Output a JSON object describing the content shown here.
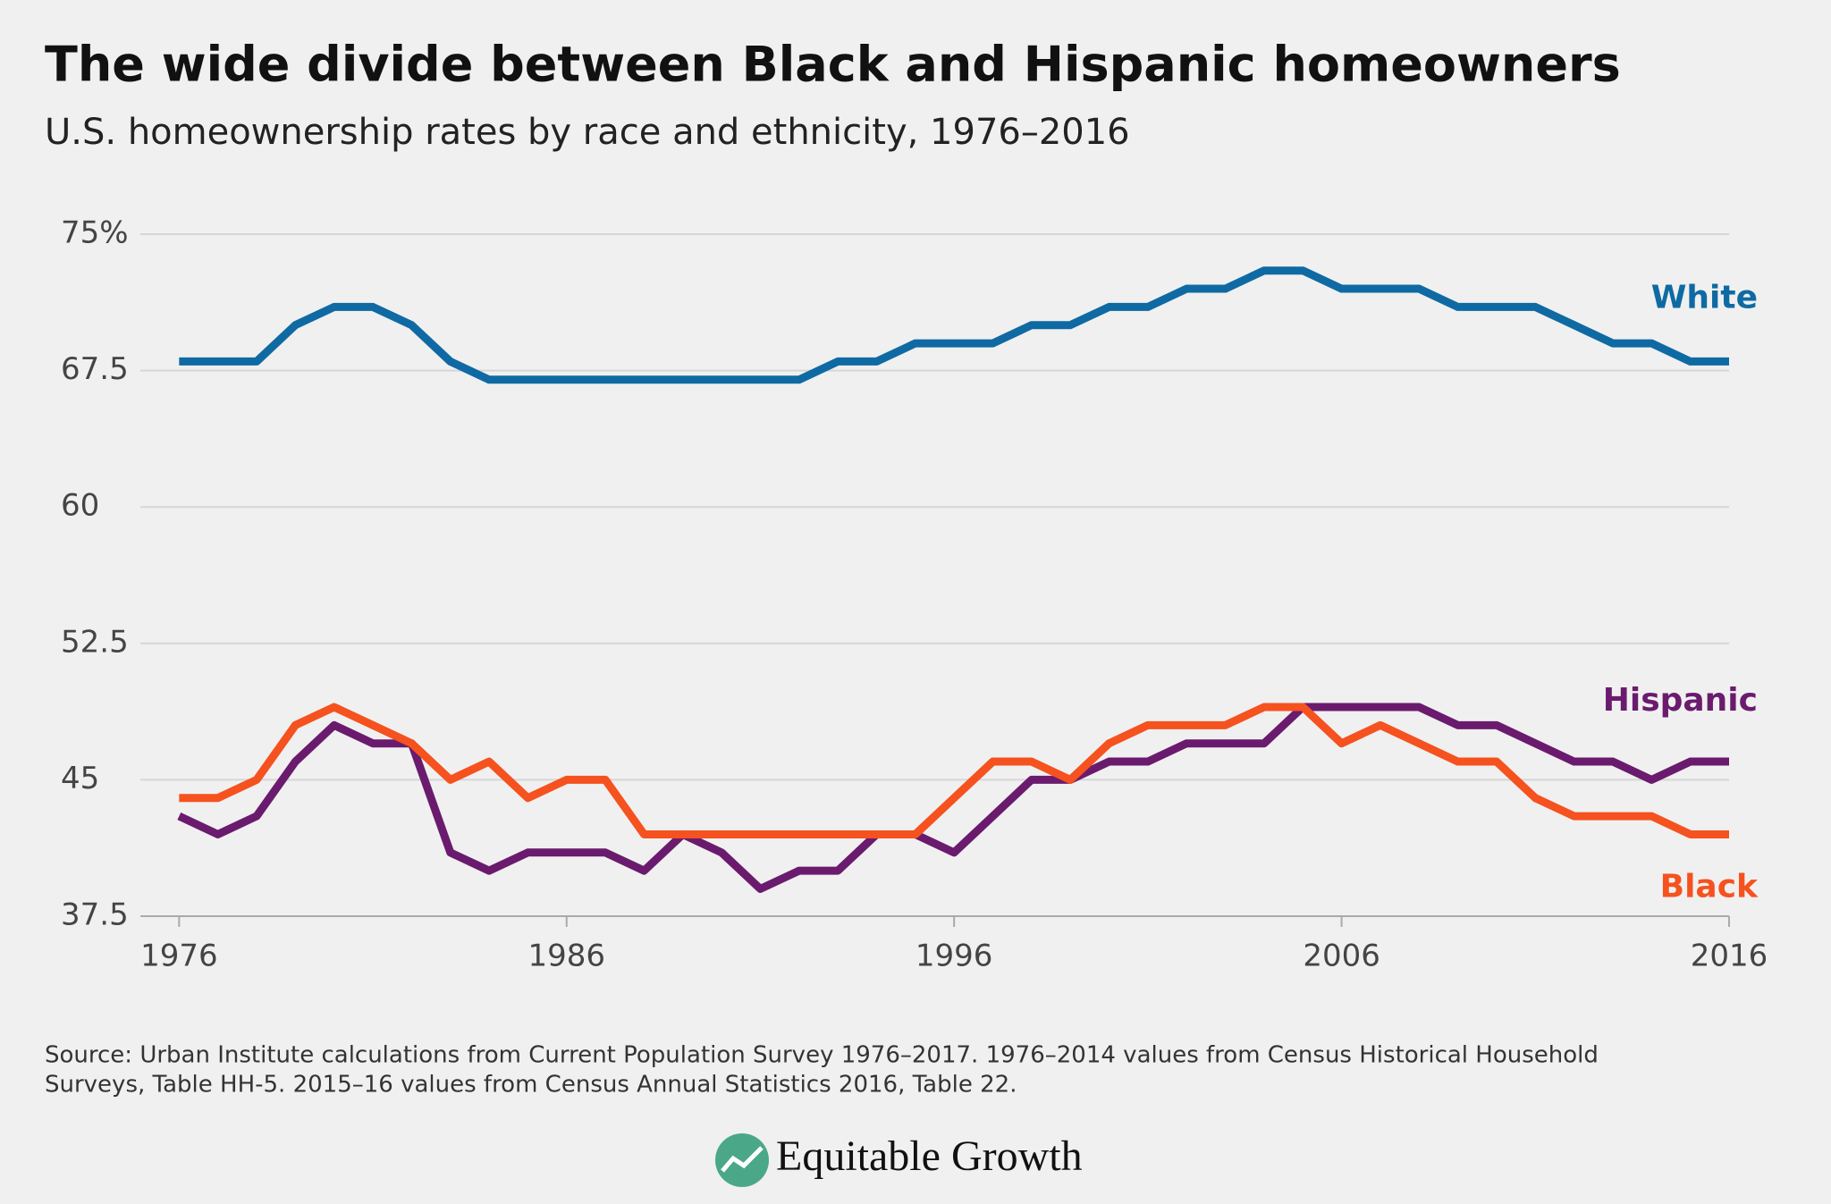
{
  "chart_data": {
    "type": "line",
    "title": "The wide divide between Black and Hispanic homeowners",
    "subtitle": "U.S. homeownership rates by race and ethnicity, 1976–2016",
    "x": [
      1976,
      1977,
      1978,
      1979,
      1980,
      1981,
      1982,
      1983,
      1984,
      1985,
      1986,
      1987,
      1988,
      1989,
      1990,
      1991,
      1992,
      1993,
      1994,
      1995,
      1996,
      1997,
      1998,
      1999,
      2000,
      2001,
      2002,
      2003,
      2004,
      2005,
      2006,
      2007,
      2008,
      2009,
      2010,
      2011,
      2012,
      2013,
      2014,
      2015,
      2016
    ],
    "series": [
      {
        "name": "White",
        "color": "#0f6aa3",
        "values": [
          68,
          68,
          68,
          70,
          71,
          71,
          70,
          68,
          67,
          67,
          67,
          67,
          67,
          67,
          67,
          67,
          67,
          68,
          68,
          69,
          69,
          69,
          70,
          70,
          71,
          71,
          72,
          72,
          73,
          73,
          72,
          72,
          72,
          71,
          71,
          71,
          70,
          69,
          69,
          68,
          68
        ]
      },
      {
        "name": "Hispanic",
        "color": "#6a1b6e",
        "values": [
          43,
          42,
          43,
          46,
          48,
          47,
          47,
          41,
          40,
          41,
          41,
          41,
          40,
          42,
          41,
          39,
          40,
          40,
          42,
          42,
          41,
          43,
          45,
          45,
          46,
          46,
          47,
          47,
          47,
          49,
          49,
          49,
          49,
          48,
          48,
          47,
          46,
          46,
          45,
          46,
          46
        ]
      },
      {
        "name": "Black",
        "color": "#f5521f",
        "values": [
          44,
          44,
          45,
          48,
          49,
          48,
          47,
          45,
          46,
          44,
          45,
          45,
          42,
          42,
          42,
          42,
          42,
          42,
          42,
          42,
          44,
          46,
          46,
          45,
          47,
          48,
          48,
          48,
          49,
          49,
          47,
          48,
          47,
          46,
          46,
          44,
          43,
          43,
          43,
          42,
          42
        ]
      }
    ],
    "xlim": [
      1975,
      2016
    ],
    "xticks": [
      1976,
      1986,
      1996,
      2006,
      2016
    ],
    "ylim": [
      37.5,
      75
    ],
    "yticks": [
      37.5,
      45,
      52.5,
      60,
      67.5,
      {
        "value": 75,
        "label": "75%"
      }
    ],
    "grid": true
  },
  "footer": {
    "source": [
      "Source: Urban Institute calculations from Current Population Survey 1976–2017. 1976–2014 values from Census Historical Household",
      "Surveys, Table HH-5. 2015–16 values from Census Annual Statistics 2016, Table 22."
    ],
    "brand": "Equitable Growth"
  }
}
